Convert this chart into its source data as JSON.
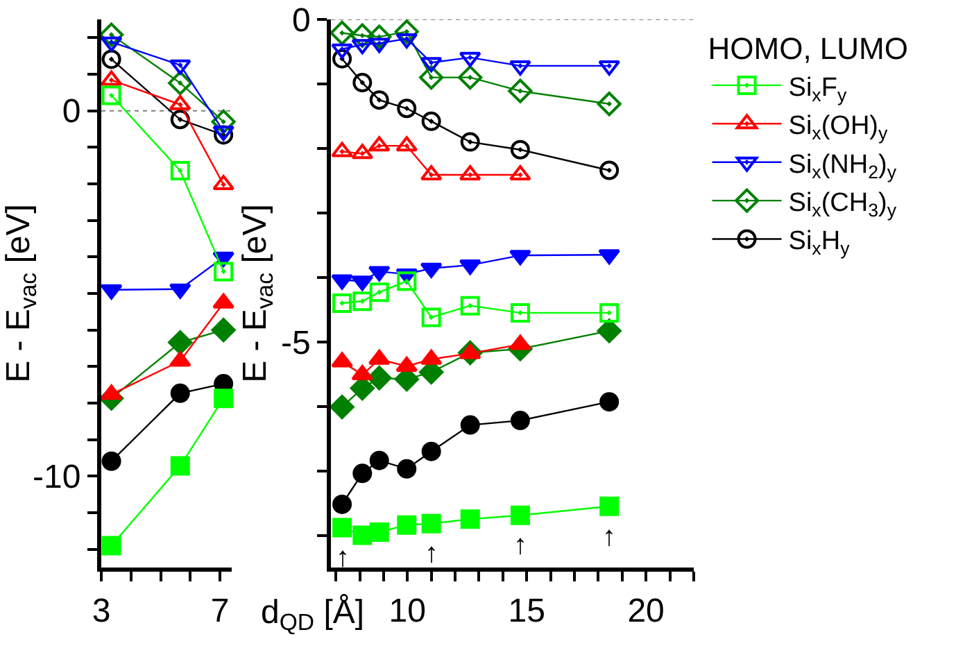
{
  "chart_data": [
    {
      "type": "line",
      "ylabel": "E - E$_{vac}$ [eV]",
      "xlim": [
        3,
        7.4
      ],
      "ylim": [
        -12.5,
        2.5
      ],
      "xticks": [
        3,
        {
          "value": 4,
          "label": null
        },
        {
          "value": 5,
          "label": null
        },
        {
          "value": 6,
          "label": null
        },
        7
      ],
      "yticks": [
        {
          "value": -12,
          "label": null
        },
        {
          "value": -11,
          "label": null
        },
        -10,
        {
          "value": -9,
          "label": null
        },
        {
          "value": -8,
          "label": null
        },
        {
          "value": -7,
          "label": null
        },
        {
          "value": -6,
          "label": null
        },
        {
          "value": -5,
          "label": null
        },
        {
          "value": -4,
          "label": null
        },
        {
          "value": -3,
          "label": null
        },
        {
          "value": -2,
          "label": null
        },
        {
          "value": -1,
          "label": null
        },
        0,
        {
          "value": 1,
          "label": null
        },
        {
          "value": 2,
          "label": null
        }
      ],
      "grid": false,
      "legend": false,
      "line_style": "solid",
      "ref_lines": [
        {
          "axis": "y",
          "value": 0,
          "color": "#808080",
          "line_style": "dotted"
        }
      ],
      "series": [
        {
          "color": "#00ff00",
          "marker": "square",
          "x": [
            3.34,
            5.66,
            7.12
          ],
          "values": [
            -11.9,
            -9.72,
            -7.87
          ]
        },
        {
          "color": "#00ff00",
          "marker": "square-open",
          "x": [
            3.34,
            5.66,
            7.12
          ],
          "values": [
            0.42,
            -1.64,
            -4.4
          ]
        },
        {
          "color": "#ff0000",
          "marker": "triangle",
          "x": [
            3.34,
            5.66,
            7.12
          ],
          "values": [
            -7.76,
            -6.85,
            -5.26
          ]
        },
        {
          "color": "#ff0000",
          "marker": "triangle-open",
          "x": [
            3.34,
            5.66,
            7.12
          ],
          "values": [
            0.84,
            0.17,
            -2.02
          ]
        },
        {
          "color": "#0000ff",
          "marker": "triangle-down",
          "x": [
            3.34,
            5.66,
            7.12
          ],
          "values": [
            -4.9,
            -4.88,
            -4.01
          ]
        },
        {
          "color": "#0000ff",
          "marker": "triangle-down-open",
          "x": [
            3.34,
            5.66,
            7.12
          ],
          "values": [
            1.88,
            1.25,
            -0.56
          ]
        },
        {
          "color": "#008000",
          "marker": "diamond",
          "x": [
            3.34,
            5.66,
            7.12
          ],
          "values": [
            -7.87,
            -6.34,
            -6.0
          ]
        },
        {
          "color": "#008000",
          "marker": "diamond-open",
          "x": [
            3.34,
            5.66,
            7.12
          ],
          "values": [
            2.08,
            0.76,
            -0.3
          ]
        },
        {
          "color": "#000000",
          "marker": "circle",
          "x": [
            3.34,
            5.66,
            7.12
          ],
          "values": [
            -9.59,
            -7.73,
            -7.47
          ]
        },
        {
          "color": "#000000",
          "marker": "circle-open",
          "x": [
            3.34,
            5.66,
            7.12
          ],
          "values": [
            1.41,
            -0.24,
            -0.66
          ]
        }
      ]
    },
    {
      "type": "line",
      "ylabel": "E - E$_{vac}$ [eV]",
      "xlabel": "d$_{QD}$ [Å]",
      "legend_title": "HOMO, LUMO",
      "xlim": [
        6.8,
        22
      ],
      "ylim": [
        -8.5,
        0
      ],
      "xticks": [
        {
          "value": 7,
          "label": null
        },
        {
          "value": 8,
          "label": null
        },
        {
          "value": 9,
          "label": null
        },
        10,
        {
          "value": 11,
          "label": null
        },
        {
          "value": 12,
          "label": null
        },
        {
          "value": 13,
          "label": null
        },
        {
          "value": 14,
          "label": null
        },
        15,
        {
          "value": 16,
          "label": null
        },
        {
          "value": 17,
          "label": null
        },
        {
          "value": 18,
          "label": null
        },
        {
          "value": 19,
          "label": null
        },
        20,
        {
          "value": 21,
          "label": null
        },
        {
          "value": 22,
          "label": null
        }
      ],
      "yticks": [
        {
          "value": -8,
          "label": null
        },
        {
          "value": -7,
          "label": null
        },
        {
          "value": -6,
          "label": null
        },
        -5,
        {
          "value": -4,
          "label": null
        },
        {
          "value": -3,
          "label": null
        },
        {
          "value": -2,
          "label": null
        },
        {
          "value": -1,
          "label": null
        },
        0
      ],
      "grid": false,
      "legend": "top right",
      "line_style": "solid",
      "ref_lines": [
        {
          "axis": "y",
          "value": 0,
          "color": "#808080",
          "line_style": "dotted"
        }
      ],
      "annotations": [
        {
          "text": "↑",
          "x": 7.26,
          "y": -7.88
        },
        {
          "text": "↑",
          "x": 11.0,
          "y": -7.82
        },
        {
          "text": "↑",
          "x": 14.73,
          "y": -7.69
        },
        {
          "text": "↑",
          "x": 18.46,
          "y": -7.55
        }
      ],
      "series": [
        {
          "color": "#00ff00",
          "marker": "square",
          "x": [
            7.26,
            8.11,
            8.82,
            9.97,
            11.0,
            12.63,
            14.73,
            18.46
          ],
          "values": [
            -7.88,
            -8.0,
            -7.95,
            -7.84,
            -7.82,
            -7.75,
            -7.69,
            -7.55
          ]
        },
        {
          "name": "Si$_{x}$F$_{y}$",
          "color": "#00ff00",
          "marker": "square-open",
          "x": [
            7.26,
            8.11,
            8.82,
            9.97,
            11.0,
            12.63,
            14.73,
            18.46
          ],
          "values": [
            -4.4,
            -4.37,
            -4.23,
            -4.06,
            -4.62,
            -4.44,
            -4.55,
            -4.55
          ]
        },
        {
          "color": "#ff0000",
          "marker": "triangle",
          "x": [
            7.26,
            8.11,
            8.82,
            9.97,
            11.0,
            12.63,
            14.73
          ],
          "values": [
            -5.31,
            -5.51,
            -5.27,
            -5.38,
            -5.27,
            -5.18,
            -5.04
          ]
        },
        {
          "name": "Si$_{x}$(OH)$_{y}$",
          "color": "#ff0000",
          "marker": "triangle-open",
          "x": [
            7.26,
            8.11,
            8.82,
            9.97,
            11.0,
            12.63,
            14.73
          ],
          "values": [
            -2.05,
            -2.08,
            -1.96,
            -1.96,
            -2.41,
            -2.41,
            -2.41
          ]
        },
        {
          "color": "#0000ff",
          "marker": "triangle-down",
          "x": [
            7.26,
            8.11,
            8.82,
            9.97,
            11.0,
            12.63,
            14.73,
            18.46
          ],
          "values": [
            -4.04,
            -4.06,
            -3.91,
            -3.95,
            -3.86,
            -3.81,
            -3.66,
            -3.65
          ]
        },
        {
          "name": "Si$_{x}$(NH$_{2}$)$_{y}$",
          "color": "#0000ff",
          "marker": "triangle-down-open",
          "x": [
            7.26,
            8.11,
            8.82,
            9.97,
            11.0,
            12.63,
            14.73,
            18.46
          ],
          "values": [
            -0.46,
            -0.39,
            -0.37,
            -0.3,
            -0.67,
            -0.59,
            -0.72,
            -0.72
          ]
        },
        {
          "color": "#008000",
          "marker": "diamond",
          "x": [
            7.26,
            8.11,
            8.82,
            9.97,
            11.0,
            12.63,
            14.73,
            18.46
          ],
          "values": [
            -6.01,
            -5.72,
            -5.56,
            -5.58,
            -5.47,
            -5.17,
            -5.11,
            -4.83
          ]
        },
        {
          "name": "Si$_{x}$(CH$_{3}$)$_{y}$",
          "color": "#008000",
          "marker": "diamond-open",
          "x": [
            7.26,
            8.11,
            8.82,
            9.97,
            11.0,
            12.63,
            14.73,
            18.46
          ],
          "values": [
            -0.21,
            -0.25,
            -0.27,
            -0.19,
            -0.9,
            -0.9,
            -1.11,
            -1.31
          ]
        },
        {
          "color": "#000000",
          "marker": "circle",
          "x": [
            7.26,
            8.11,
            8.82,
            9.97,
            11.0,
            12.63,
            14.73,
            18.46
          ],
          "values": [
            -7.52,
            -7.04,
            -6.84,
            -6.97,
            -6.7,
            -6.29,
            -6.22,
            -5.93
          ]
        },
        {
          "name": "Si$_{x}$H$_{y}$",
          "color": "#000000",
          "marker": "circle-open",
          "x": [
            7.26,
            8.11,
            8.82,
            9.97,
            11.0,
            12.63,
            14.73,
            18.46
          ],
          "values": [
            -0.61,
            -0.98,
            -1.25,
            -1.38,
            -1.58,
            -1.9,
            -2.02,
            -2.34
          ]
        }
      ]
    }
  ]
}
